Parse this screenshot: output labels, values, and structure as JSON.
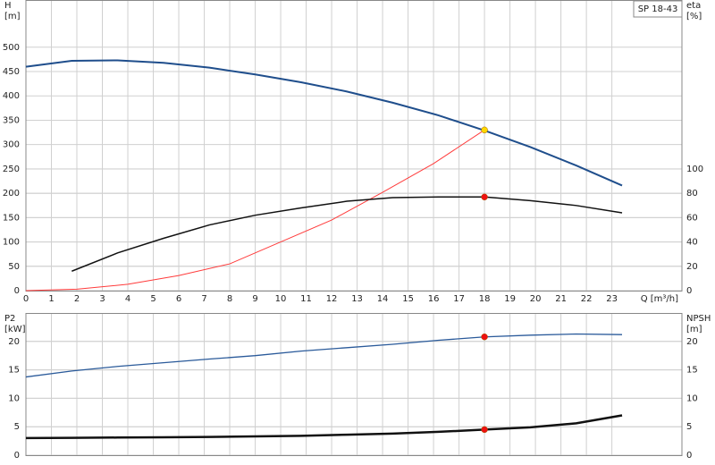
{
  "chart_data": [
    {
      "type": "line",
      "title": "SP 18-43",
      "xlabel": "Q [m³/h]",
      "ylabel": "H",
      "ylabel_unit": "[m]",
      "y2label": "eta",
      "y2label_unit": "[%]",
      "xlim": [
        0,
        25.75
      ],
      "xticks": [
        0,
        1,
        2,
        3,
        4,
        5,
        6,
        7,
        8,
        9,
        10,
        11,
        12,
        13,
        14,
        15,
        16,
        17,
        18,
        19,
        20,
        21,
        22,
        23
      ],
      "ylim": [
        0,
        597
      ],
      "yticks": [
        0,
        50,
        100,
        150,
        200,
        250,
        300,
        350,
        400,
        450,
        500
      ],
      "y2lim": [
        0,
        239
      ],
      "y2ticks": [
        0,
        20,
        40,
        60,
        80,
        100
      ],
      "grid": true,
      "series": [
        {
          "color": "#1f4e8c",
          "width": 2,
          "x": [
            0,
            1.8,
            3.6,
            5.4,
            7.2,
            9,
            10.8,
            12.6,
            14.4,
            16.2,
            18,
            19.8,
            21.6,
            23.4
          ],
          "values": [
            460,
            472,
            473,
            468,
            458,
            444,
            428,
            409,
            386,
            360,
            329,
            295,
            257,
            216
          ]
        },
        {
          "color": "#ff3b3b",
          "width": 1,
          "x": [
            0,
            2,
            4,
            6,
            8,
            10,
            12,
            14,
            16,
            18
          ],
          "values": [
            0,
            3,
            13,
            31,
            55,
            100,
            145,
            202,
            261,
            330
          ]
        },
        {
          "color": "#111111",
          "width": 1.5,
          "axis": "y2",
          "x": [
            1.8,
            3.6,
            5.4,
            7.2,
            9,
            10.8,
            12.6,
            14.4,
            16.2,
            18,
            19.8,
            21.6,
            23.4
          ],
          "values": [
            16,
            31,
            43,
            54,
            62,
            68,
            73.5,
            76.5,
            77,
            77,
            74,
            70,
            64
          ]
        }
      ],
      "markers": [
        {
          "x": 18,
          "value": 330,
          "color": "#ffd700"
        },
        {
          "x": 18,
          "value": 77,
          "color": "#ee1111",
          "axis": "y2"
        }
      ]
    },
    {
      "type": "line",
      "ylabel": "P2",
      "ylabel_unit": "[kW]",
      "y2label": "NPSH",
      "y2label_unit": "[m]",
      "xlim": [
        0,
        25.75
      ],
      "xticks": [
        0,
        1,
        2,
        3,
        4,
        5,
        6,
        7,
        8,
        9,
        10,
        11,
        12,
        13,
        14,
        15,
        16,
        17,
        18,
        19,
        20,
        21,
        22,
        23
      ],
      "ylim": [
        0,
        25
      ],
      "yticks": [
        0,
        5,
        10,
        15,
        20
      ],
      "y2lim": [
        0,
        25
      ],
      "y2ticks": [
        0,
        5,
        10,
        15,
        20
      ],
      "grid": true,
      "series": [
        {
          "color": "#2a5a9a",
          "width": 1.3,
          "x": [
            0,
            1.8,
            3.6,
            5.4,
            7.2,
            9,
            10.8,
            12.6,
            14.4,
            16.2,
            18,
            19.8,
            21.6,
            23.4
          ],
          "values": [
            13.75,
            14.8,
            15.6,
            16.25,
            16.9,
            17.5,
            18.3,
            18.9,
            19.5,
            20.2,
            20.8,
            21.1,
            21.3,
            21.2
          ]
        },
        {
          "color": "#111111",
          "width": 2.5,
          "axis": "y2",
          "x": [
            0,
            1.8,
            3.6,
            5.4,
            7.2,
            9,
            10.8,
            12.6,
            14.4,
            16.2,
            18,
            19.8,
            21.6,
            23.4
          ],
          "values": [
            3.0,
            3.05,
            3.1,
            3.15,
            3.2,
            3.3,
            3.4,
            3.6,
            3.8,
            4.1,
            4.5,
            4.9,
            5.6,
            7.0
          ]
        }
      ],
      "markers": [
        {
          "x": 18,
          "value": 20.8,
          "color": "#ee1111"
        },
        {
          "x": 18,
          "value": 4.5,
          "color": "#ee1111",
          "axis": "y2"
        }
      ]
    }
  ]
}
